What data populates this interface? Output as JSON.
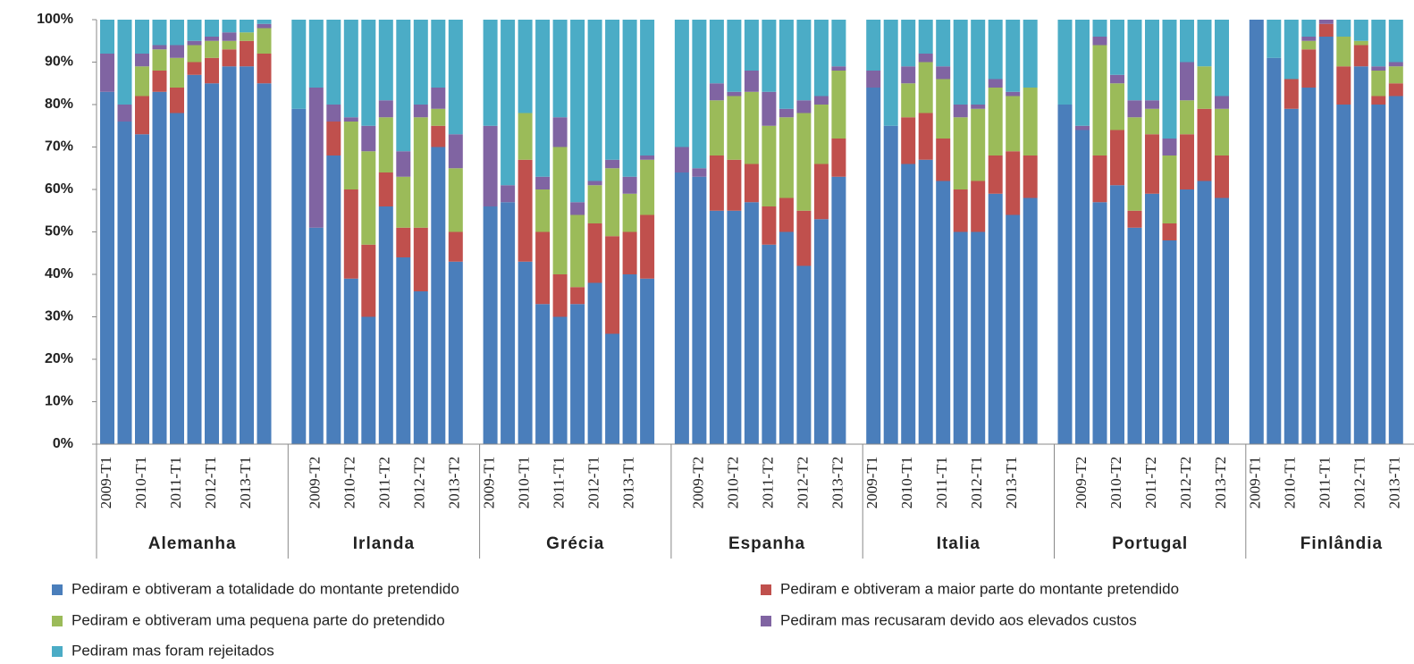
{
  "chart_data": {
    "type": "stacked-bar",
    "ylim": [
      0,
      100
    ],
    "yticks": [
      {
        "value": 0,
        "label": "0%"
      },
      {
        "value": 10,
        "label": "10%"
      },
      {
        "value": 20,
        "label": "20%"
      },
      {
        "value": 30,
        "label": "30%"
      },
      {
        "value": 40,
        "label": "40%"
      },
      {
        "value": 50,
        "label": "50%"
      },
      {
        "value": 60,
        "label": "60%"
      },
      {
        "value": 70,
        "label": "70%"
      },
      {
        "value": 80,
        "label": "80%"
      },
      {
        "value": 90,
        "label": "90%"
      },
      {
        "value": 100,
        "label": "100%"
      }
    ],
    "groups": [
      {
        "name": "Alemanha",
        "categories": [
          "2009-T1",
          null,
          "2010-T1",
          null,
          "2011-T1",
          null,
          "2012-T1",
          null,
          "2013-T1",
          null
        ]
      },
      {
        "name": "Irlanda",
        "categories": [
          null,
          "2009-T2",
          null,
          "2010-T2",
          null,
          "2011-T2",
          null,
          "2012-T2",
          null,
          "2013-T2"
        ]
      },
      {
        "name": "Grécia",
        "categories": [
          "2009-T1",
          null,
          "2010-T1",
          null,
          "2011-T1",
          null,
          "2012-T1",
          null,
          "2013-T1",
          null
        ]
      },
      {
        "name": "Espanha",
        "categories": [
          null,
          "2009-T2",
          null,
          "2010-T2",
          null,
          "2011-T2",
          null,
          "2012-T2",
          null,
          "2013-T2"
        ]
      },
      {
        "name": "Italia",
        "categories": [
          "2009-T1",
          null,
          "2010-T1",
          null,
          "2011-T1",
          null,
          "2012-T1",
          null,
          "2013-T1",
          null
        ]
      },
      {
        "name": "Portugal",
        "categories": [
          null,
          "2009-T2",
          null,
          "2010-T2",
          null,
          "2011-T2",
          null,
          "2012-T2",
          null,
          "2013-T2"
        ]
      },
      {
        "name": "Finlândia",
        "categories": [
          "2009-T1",
          null,
          "2010-T1",
          null,
          "2011-T1",
          null,
          "2012-T1",
          null,
          "2013-T1"
        ]
      }
    ],
    "series": [
      {
        "name": "Pediram e obtiveram a totalidade do montante pretendido",
        "color": "#4a7ebb",
        "values": [
          [
            83,
            76,
            73,
            83,
            78,
            87,
            85,
            89,
            89,
            85
          ],
          [
            79,
            51,
            68,
            39,
            30,
            56,
            44,
            36,
            70,
            43
          ],
          [
            56,
            57,
            43,
            33,
            30,
            33,
            38,
            26,
            40,
            39
          ],
          [
            64,
            63,
            55,
            55,
            57,
            47,
            50,
            42,
            53,
            63
          ],
          [
            84,
            75,
            66,
            67,
            62,
            50,
            50,
            59,
            54,
            58
          ],
          [
            80,
            74,
            57,
            61,
            51,
            59,
            48,
            60,
            62,
            58
          ],
          [
            100,
            91,
            79,
            84,
            96,
            80,
            89,
            80,
            82
          ]
        ]
      },
      {
        "name": "Pediram e obtiveram a maior parte do montante pretendido",
        "color": "#c0504d",
        "values": [
          [
            0,
            0,
            9,
            5,
            6,
            3,
            6,
            4,
            6,
            7
          ],
          [
            0,
            0,
            8,
            21,
            17,
            8,
            7,
            15,
            5,
            7
          ],
          [
            0,
            0,
            24,
            17,
            10,
            4,
            14,
            23,
            10,
            15
          ],
          [
            0,
            0,
            13,
            12,
            9,
            9,
            8,
            13,
            13,
            9
          ],
          [
            0,
            0,
            11,
            11,
            10,
            10,
            12,
            9,
            15,
            10
          ],
          [
            0,
            0,
            11,
            13,
            4,
            14,
            4,
            13,
            17,
            10
          ],
          [
            0,
            0,
            7,
            9,
            3,
            9,
            5,
            2,
            3
          ]
        ]
      },
      {
        "name": "Pediram e obtiveram uma pequena parte do pretendido",
        "color": "#9bbb59",
        "values": [
          [
            0,
            0,
            7,
            5,
            7,
            4,
            4,
            2,
            2,
            6
          ],
          [
            0,
            0,
            0,
            16,
            22,
            13,
            12,
            26,
            4,
            15
          ],
          [
            0,
            0,
            11,
            10,
            30,
            17,
            9,
            16,
            9,
            13
          ],
          [
            0,
            0,
            13,
            15,
            17,
            19,
            19,
            23,
            14,
            16
          ],
          [
            0,
            0,
            8,
            12,
            14,
            17,
            17,
            16,
            13,
            16
          ],
          [
            0,
            0,
            26,
            11,
            22,
            6,
            16,
            8,
            10,
            11
          ],
          [
            0,
            0,
            0,
            2,
            0,
            7,
            1,
            6,
            4
          ]
        ]
      },
      {
        "name": "Pediram mas recusaram devido aos elevados custos",
        "color": "#8064a2",
        "values": [
          [
            9,
            4,
            3,
            1,
            3,
            1,
            1,
            2,
            0,
            1
          ],
          [
            0,
            33,
            4,
            1,
            6,
            4,
            6,
            3,
            5,
            8
          ],
          [
            19,
            4,
            0,
            3,
            7,
            3,
            1,
            2,
            4,
            1
          ],
          [
            6,
            2,
            4,
            1,
            5,
            8,
            2,
            3,
            2,
            1
          ],
          [
            4,
            0,
            4,
            2,
            3,
            3,
            1,
            2,
            1,
            0
          ],
          [
            0,
            1,
            2,
            2,
            4,
            2,
            4,
            9,
            0,
            3
          ],
          [
            0,
            0,
            0,
            1,
            1,
            0,
            0,
            1,
            1
          ]
        ]
      },
      {
        "name": "Pediram mas foram rejeitados",
        "color": "#4bacc6",
        "values": [
          [
            8,
            20,
            8,
            6,
            6,
            5,
            4,
            3,
            3,
            1
          ],
          [
            21,
            16,
            20,
            23,
            25,
            19,
            31,
            20,
            16,
            27
          ],
          [
            25,
            39,
            22,
            37,
            23,
            43,
            38,
            33,
            37,
            32
          ],
          [
            30,
            35,
            15,
            17,
            12,
            17,
            21,
            19,
            18,
            11
          ],
          [
            12,
            25,
            11,
            8,
            11,
            20,
            20,
            14,
            17,
            16
          ],
          [
            20,
            25,
            4,
            13,
            19,
            19,
            28,
            10,
            11,
            18
          ],
          [
            0,
            9,
            14,
            4,
            0,
            4,
            5,
            11,
            10
          ]
        ]
      }
    ]
  }
}
